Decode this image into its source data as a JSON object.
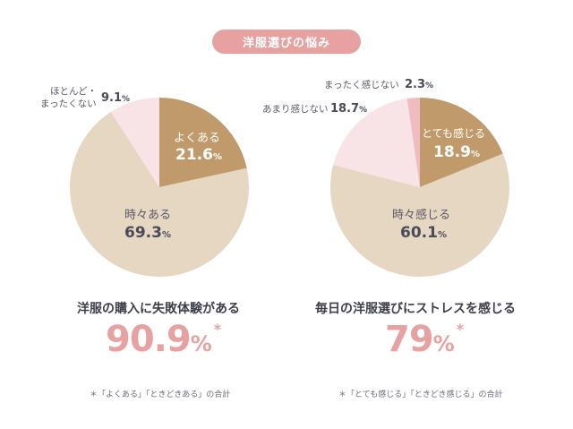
{
  "header": {
    "badge": "洋服選びの悩み"
  },
  "chart_data": [
    {
      "type": "pie",
      "slices": [
        {
          "label": "よくある",
          "value": 21.6,
          "color": "#c19a6b"
        },
        {
          "label": "時々ある",
          "value": 69.3,
          "color": "#e6d7c3"
        },
        {
          "label": "ほとんど・まったくない",
          "value": 9.1,
          "color": "#f8e4e6"
        }
      ],
      "labels": {
        "s1_label": "よくある",
        "s1_value": "21.6",
        "s1_unit": "%",
        "s2_label": "時々ある",
        "s2_value": "69.3",
        "s2_unit": "%",
        "s3_label_line1": "ほとんど・",
        "s3_label_line2": "まったくない",
        "s3_value": "9.1",
        "s3_unit": "%"
      },
      "title": "洋服の購入に失敗体験がある",
      "big_value": "90.9",
      "big_unit": "%",
      "big_mark": "*",
      "note": "＊「よくある」「ときどきある」の合計"
    },
    {
      "type": "pie",
      "slices": [
        {
          "label": "とても感じる",
          "value": 18.9,
          "color": "#c19a6b"
        },
        {
          "label": "時々感じる",
          "value": 60.1,
          "color": "#e6d7c3"
        },
        {
          "label": "あまり感じない",
          "value": 18.7,
          "color": "#f8e4e6"
        },
        {
          "label": "まったく感じない",
          "value": 2.3,
          "color": "#f0bcc2"
        }
      ],
      "labels": {
        "s1_label": "とても感じる",
        "s1_value": "18.9",
        "s1_unit": "%",
        "s2_label": "時々感じる",
        "s2_value": "60.1",
        "s2_unit": "%",
        "s3_label": "あまり感じない",
        "s3_value": "18.7",
        "s3_unit": "%",
        "s4_label": "まったく感じない",
        "s4_value": "2.3",
        "s4_unit": "%"
      },
      "title": "毎日の洋服選びにストレスを感じる",
      "big_value": "79",
      "big_unit": "%",
      "big_mark": "*",
      "note": "＊「とても感じる」「ときどき感じる」の合計"
    }
  ]
}
